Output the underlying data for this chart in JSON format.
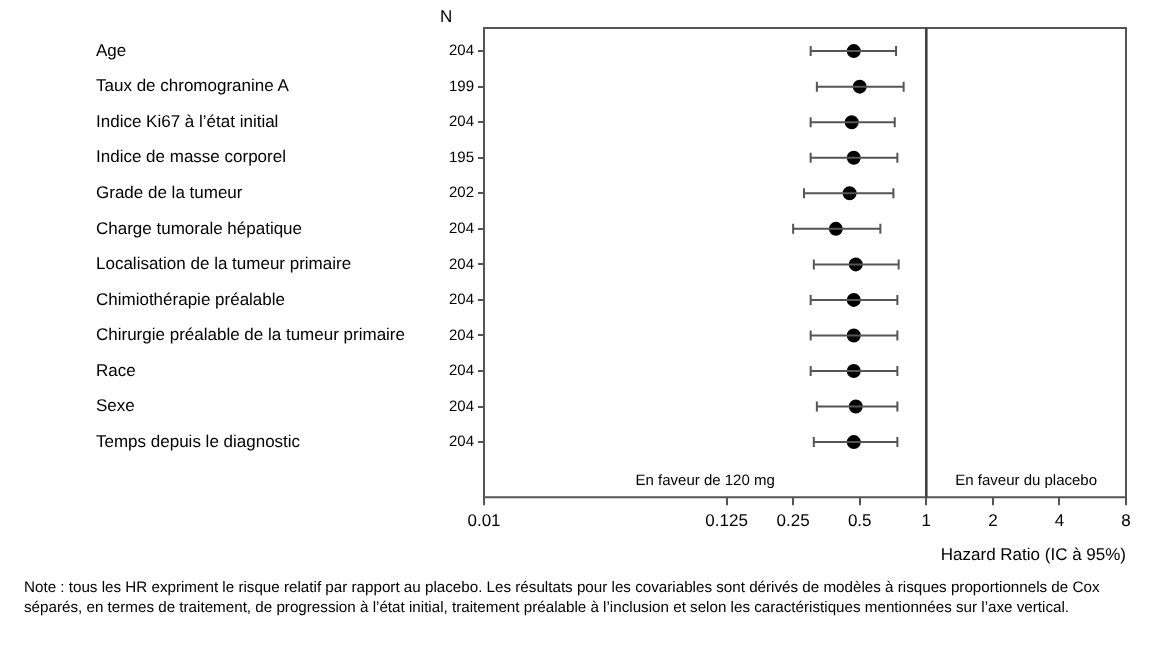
{
  "chart_data": {
    "type": "scatter",
    "orientation": "horizontal",
    "categories": [
      "Age",
      "Taux de chromogranine A",
      "Indice Ki67 à l’état initial",
      "Indice de masse corporel",
      "Grade de la tumeur",
      "Charge tumorale hépatique",
      "Localisation de la tumeur primaire",
      "Chimiothérapie préalable",
      "Chirurgie préalable de la tumeur primaire",
      "Race",
      "Sexe",
      "Temps depuis le diagnostic"
    ],
    "y2label": "N",
    "y2_categories": [
      "204",
      "199",
      "204",
      "195",
      "202",
      "204",
      "204",
      "204",
      "204",
      "204",
      "204",
      "204"
    ],
    "series": [
      {
        "color": "#000000",
        "values": [
          0.47,
          0.5,
          0.46,
          0.47,
          0.45,
          0.39,
          0.48,
          0.47,
          0.47,
          0.47,
          0.48,
          0.47
        ],
        "errors": [
          [
            0.3,
            0.73
          ],
          [
            0.32,
            0.79
          ],
          [
            0.3,
            0.72
          ],
          [
            0.3,
            0.74
          ],
          [
            0.28,
            0.71
          ],
          [
            0.25,
            0.62
          ],
          [
            0.31,
            0.75
          ],
          [
            0.3,
            0.74
          ],
          [
            0.3,
            0.74
          ],
          [
            0.3,
            0.74
          ],
          [
            0.32,
            0.74
          ],
          [
            0.31,
            0.74
          ]
        ]
      }
    ],
    "xlabel": "Hazard Ratio (IC à 95%)",
    "log": "x",
    "xlim": [
      0.01,
      8
    ],
    "xticks": [
      0.01,
      0.125,
      0.25,
      0.5,
      1,
      2,
      4,
      8
    ],
    "ref_lines": [
      {
        "axis": "x",
        "value": 1,
        "color": "#404040"
      }
    ],
    "annotations": [
      "En faveur de 120 mg",
      "En faveur du placebo",
      "Note : tous les HR expriment le risque relatif par rapport au placebo. Les résultats pour les covariables sont dérivés de modèles à risques proportionnels de Cox séparés, en termes de traitement, de progression à l’état initial, traitement préalable à l’inclusion et selon les caractéristiques mentionnées sur l’axe vertical."
    ],
    "marker": "circle",
    "grid": false,
    "legend": false
  }
}
